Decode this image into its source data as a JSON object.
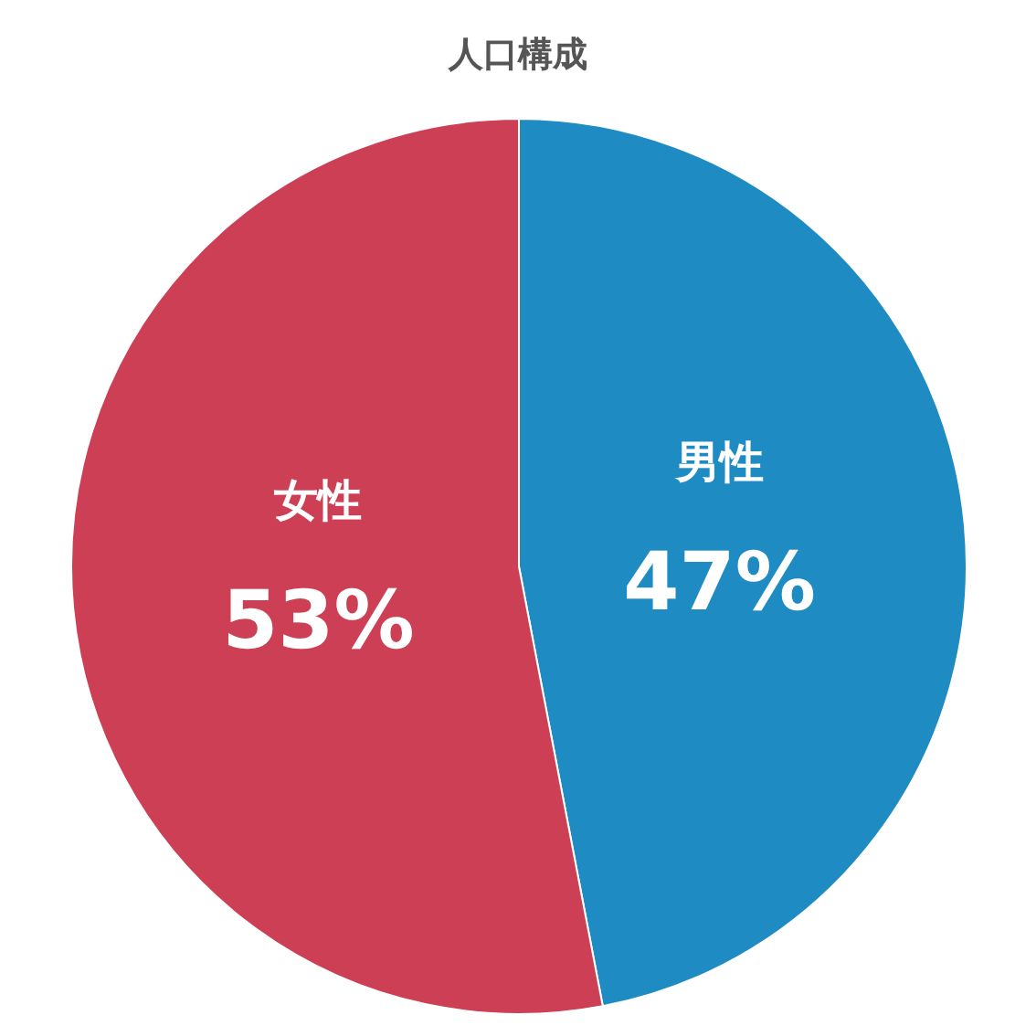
{
  "chart_data": {
    "type": "pie",
    "title": "人口構成",
    "categories": [
      "男性",
      "女性"
    ],
    "values": [
      47,
      53
    ],
    "colors": [
      "#1f8bc3",
      "#cc3f55"
    ],
    "value_labels": [
      "47%",
      "53%"
    ]
  }
}
